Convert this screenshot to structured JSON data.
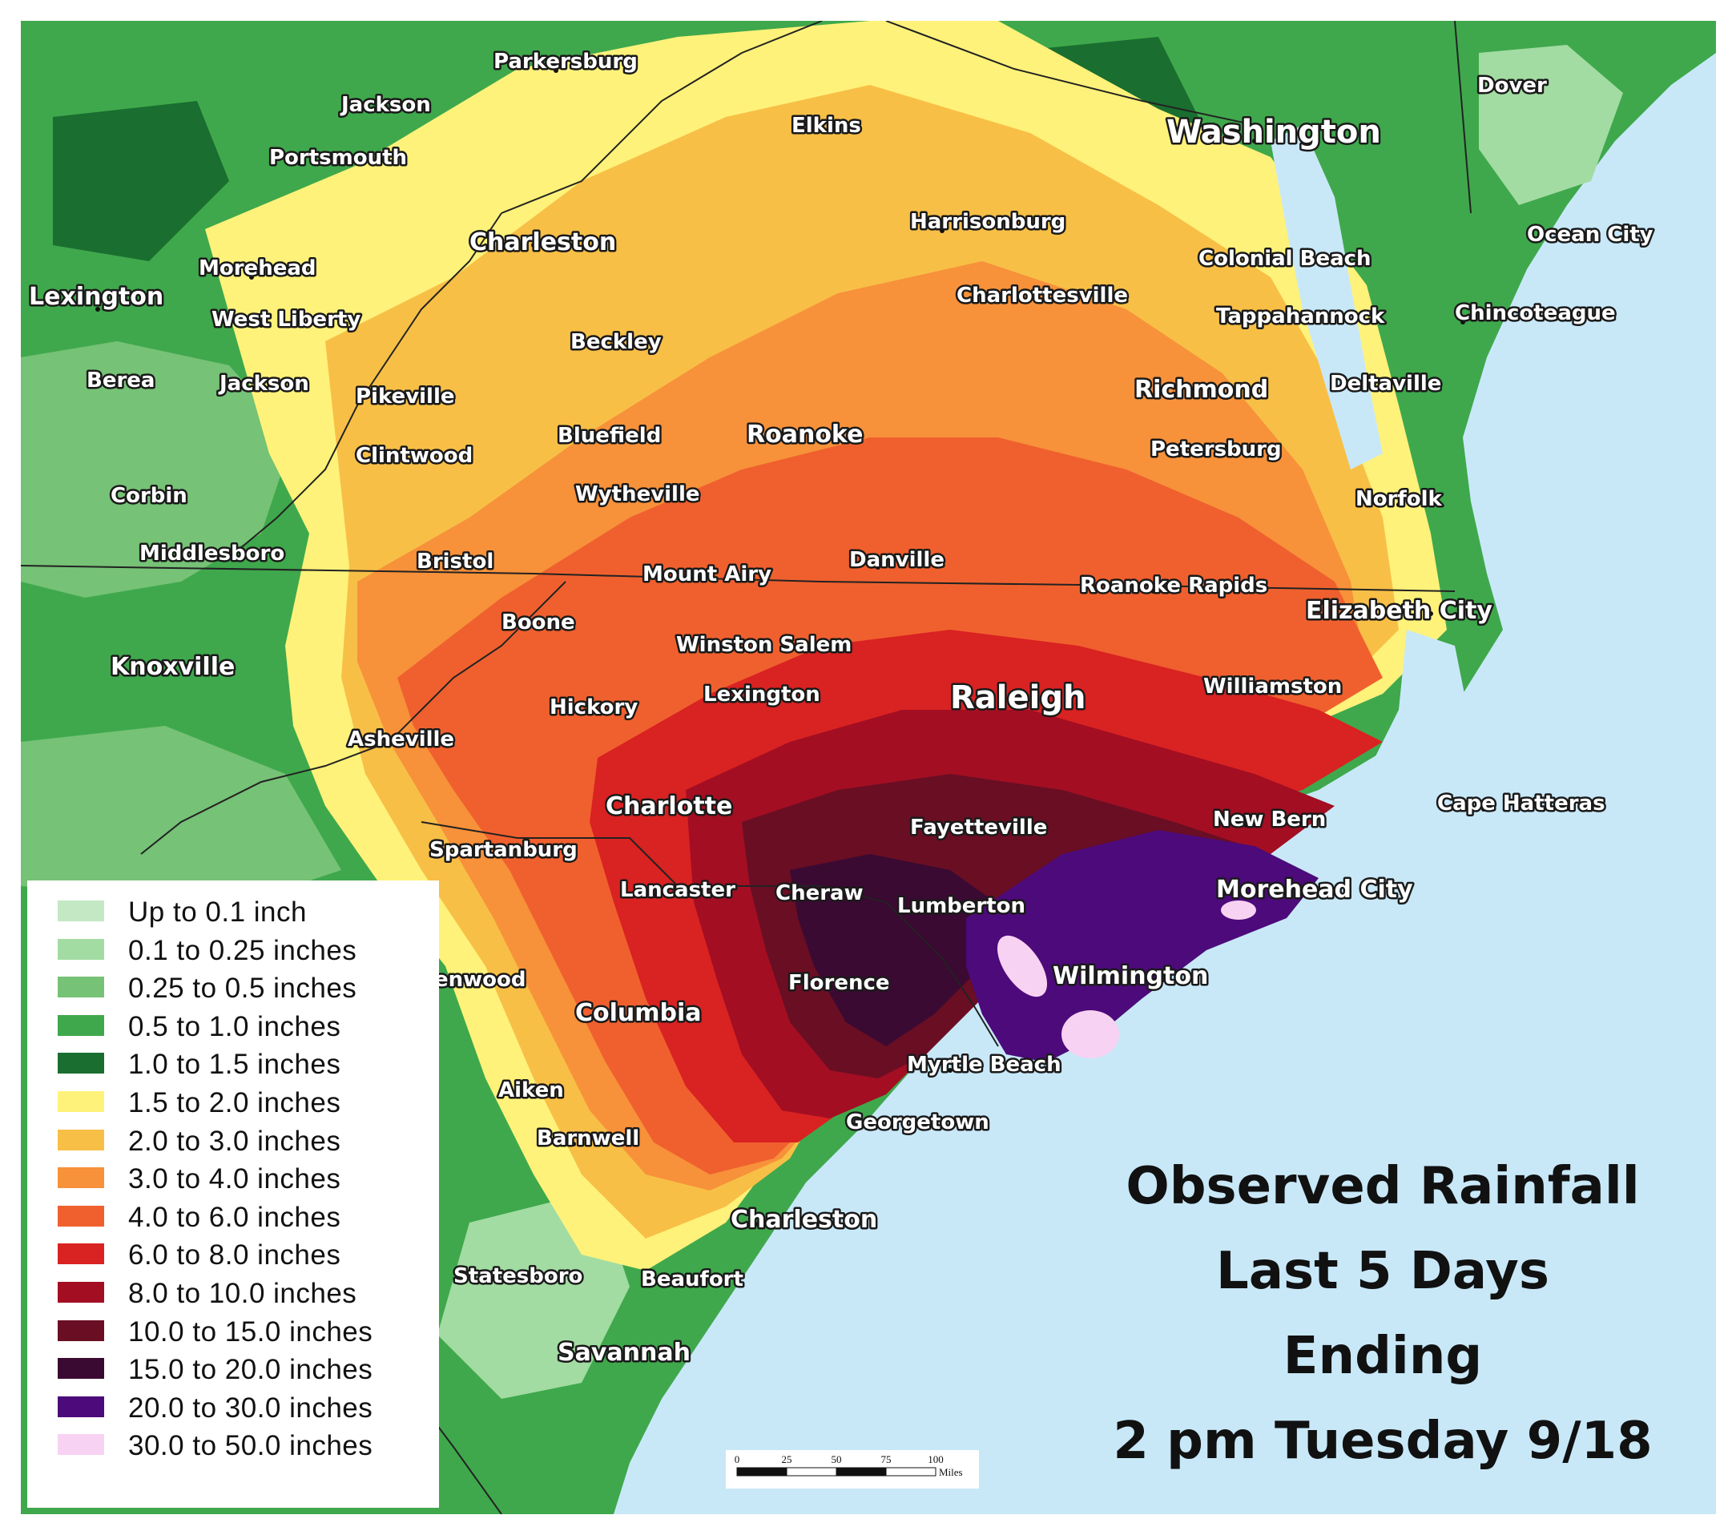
{
  "title": {
    "line1": "Observed Rainfall",
    "line2": "Last 5 Days",
    "line3": "Ending",
    "line4": "2 pm Tuesday 9/18"
  },
  "legend": [
    {
      "label": "Up to 0.1 inch",
      "color": "#c4e8c4"
    },
    {
      "label": "0.1 to 0.25 inches",
      "color": "#a2dca2"
    },
    {
      "label": "0.25 to 0.5 inches",
      "color": "#76c276"
    },
    {
      "label": "0.5 to 1.0 inches",
      "color": "#3fa84c"
    },
    {
      "label": "1.0 to 1.5 inches",
      "color": "#1a6e2f"
    },
    {
      "label": "1.5 to 2.0 inches",
      "color": "#fff27a"
    },
    {
      "label": "2.0 to 3.0 inches",
      "color": "#f8bf46"
    },
    {
      "label": "3.0 to 4.0 inches",
      "color": "#f7913a"
    },
    {
      "label": "4.0 to 6.0 inches",
      "color": "#f0602e"
    },
    {
      "label": "6.0 to 8.0 inches",
      "color": "#d92222"
    },
    {
      "label": "8.0 to 10.0 inches",
      "color": "#a30e22"
    },
    {
      "label": "10.0 to 15.0 inches",
      "color": "#6a0e24"
    },
    {
      "label": "15.0 to 20.0 inches",
      "color": "#3a0a32"
    },
    {
      "label": "20.0 to 30.0 inches",
      "color": "#4c0a7a"
    },
    {
      "label": "30.0 to 50.0 inches",
      "color": "#f8d2f2"
    }
  ],
  "cities": [
    {
      "name": "Parkersburg",
      "size": "s"
    },
    {
      "name": "Jackson",
      "size": "s"
    },
    {
      "name": "Elkins",
      "size": "s"
    },
    {
      "name": "Washington",
      "size": "l"
    },
    {
      "name": "Dover",
      "size": "s"
    },
    {
      "name": "Portsmouth",
      "size": "s"
    },
    {
      "name": "Charleston",
      "size": "m"
    },
    {
      "name": "Harrisonburg",
      "size": "s"
    },
    {
      "name": "Ocean City",
      "size": "s"
    },
    {
      "name": "Colonial Beach",
      "size": "s"
    },
    {
      "name": "Morehead",
      "size": "s"
    },
    {
      "name": "Lexington",
      "size": "m"
    },
    {
      "name": "West Liberty",
      "size": "s"
    },
    {
      "name": "Charlottesville",
      "size": "s"
    },
    {
      "name": "Tappahannock",
      "size": "s"
    },
    {
      "name": "Chincoteague",
      "size": "s"
    },
    {
      "name": "Beckley",
      "size": "s"
    },
    {
      "name": "Berea",
      "size": "s"
    },
    {
      "name": "Jackson",
      "size": "s"
    },
    {
      "name": "Pikeville",
      "size": "s"
    },
    {
      "name": "Richmond",
      "size": "m"
    },
    {
      "name": "Deltaville",
      "size": "s"
    },
    {
      "name": "Bluefield",
      "size": "s"
    },
    {
      "name": "Roanoke",
      "size": "m"
    },
    {
      "name": "Petersburg",
      "size": "s"
    },
    {
      "name": "Clintwood",
      "size": "s"
    },
    {
      "name": "Corbin",
      "size": "s"
    },
    {
      "name": "Wytheville",
      "size": "s"
    },
    {
      "name": "Norfolk",
      "size": "s"
    },
    {
      "name": "Middlesboro",
      "size": "s"
    },
    {
      "name": "Bristol",
      "size": "s"
    },
    {
      "name": "Danville",
      "size": "s"
    },
    {
      "name": "Mount Airy",
      "size": "s"
    },
    {
      "name": "Roanoke Rapids",
      "size": "s"
    },
    {
      "name": "Elizabeth City",
      "size": "m"
    },
    {
      "name": "Boone",
      "size": "s"
    },
    {
      "name": "Winston Salem",
      "size": "s"
    },
    {
      "name": "Knoxville",
      "size": "m"
    },
    {
      "name": "Raleigh",
      "size": "l"
    },
    {
      "name": "Williamston",
      "size": "s"
    },
    {
      "name": "Lexington",
      "size": "s"
    },
    {
      "name": "Hickory",
      "size": "s"
    },
    {
      "name": "Asheville",
      "size": "s"
    },
    {
      "name": "Charlotte",
      "size": "m"
    },
    {
      "name": "Cape Hatteras",
      "size": "s"
    },
    {
      "name": "New Bern",
      "size": "s"
    },
    {
      "name": "Fayetteville",
      "size": "s"
    },
    {
      "name": "Spartanburg",
      "size": "s"
    },
    {
      "name": "Morehead City",
      "size": "m"
    },
    {
      "name": "Lancaster",
      "size": "s"
    },
    {
      "name": "Cheraw",
      "size": "s"
    },
    {
      "name": "Lumberton",
      "size": "s"
    },
    {
      "name": "Wilmington",
      "size": "m"
    },
    {
      "name": "Florence",
      "size": "s"
    },
    {
      "name": "enwood",
      "size": "s"
    },
    {
      "name": "Columbia",
      "size": "m"
    },
    {
      "name": "Myrtle Beach",
      "size": "s"
    },
    {
      "name": "Aiken",
      "size": "s"
    },
    {
      "name": "Georgetown",
      "size": "s"
    },
    {
      "name": "Barnwell",
      "size": "s"
    },
    {
      "name": "Charleston",
      "size": "m"
    },
    {
      "name": "Statesboro",
      "size": "s"
    },
    {
      "name": "Beaufort",
      "size": "s"
    },
    {
      "name": "Savannah",
      "size": "m"
    }
  ],
  "scale_bar": {
    "ticks": [
      "0",
      "25",
      "50",
      "75",
      "100"
    ],
    "unit": "Miles"
  }
}
